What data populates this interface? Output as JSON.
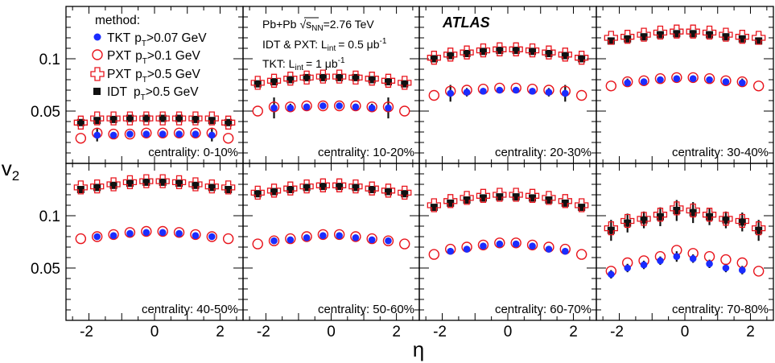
{
  "chart_data": {
    "type": "scatter",
    "ylabel": "v",
    "ylabel_sub": "2",
    "xlabel": "η",
    "xlim": [
      -2.7,
      2.7
    ],
    "ylim": [
      0.0,
      0.15
    ],
    "x_ticks": [
      -2,
      0,
      2
    ],
    "y_ticks": [
      0.05,
      0.1
    ],
    "legend": {
      "title": "method:",
      "entries": [
        {
          "method": "TKT",
          "cut": ">0.07 GeV",
          "marker": "filled-circle",
          "color": "#1a2cff"
        },
        {
          "method": "PXT",
          "cut": ">0.1 GeV",
          "marker": "open-circle",
          "color": "#e8141c"
        },
        {
          "method": "PXT",
          "cut": ">0.5 GeV",
          "marker": "open-cross",
          "color": "#e8141c"
        },
        {
          "method": "IDT",
          "cut": ">0.5 GeV",
          "marker": "filled-square",
          "color": "#111111"
        }
      ]
    },
    "info": {
      "system_prefix": "Pb+Pb",
      "system_value": "=2.76 TeV",
      "lumi1_prefix": "IDT & PXT: L",
      "lumi1_value": "= 0.5 μb",
      "lumi2_prefix": "TKT: L",
      "lumi2_value": "= 1 μb"
    },
    "atlas_label": "ATLAS",
    "panels": [
      {
        "label": "centrality: 0-10%",
        "tkt_x": [
          -1.75,
          -1.25,
          -0.75,
          -0.25,
          0.25,
          0.75,
          1.25,
          1.75
        ],
        "tkt_y": [
          0.027,
          0.027,
          0.028,
          0.028,
          0.028,
          0.028,
          0.028,
          0.027
        ],
        "tkt_err": [
          0.006,
          0.002,
          0.002,
          0.001,
          0.001,
          0.002,
          0.002,
          0.006
        ],
        "pxt01_x": [
          -2.25,
          -1.75,
          -1.25,
          -0.75,
          -0.25,
          0.25,
          0.75,
          1.25,
          1.75,
          2.25
        ],
        "pxt01_y": [
          0.024,
          0.029,
          0.028,
          0.028,
          0.029,
          0.029,
          0.029,
          0.029,
          0.029,
          0.024
        ],
        "pxt05_x": [
          -2.25,
          -1.75,
          -1.25,
          -0.75,
          -0.25,
          0.25,
          0.75,
          1.25,
          1.75,
          2.25
        ],
        "pxt05_y": [
          0.039,
          0.043,
          0.043,
          0.043,
          0.043,
          0.043,
          0.043,
          0.043,
          0.043,
          0.039
        ],
        "idt_x": [
          -2.25,
          -1.75,
          -1.25,
          -0.75,
          -0.25,
          0.25,
          0.75,
          1.25,
          1.75,
          2.25
        ],
        "idt_y": [
          0.039,
          0.041,
          0.042,
          0.043,
          0.043,
          0.043,
          0.043,
          0.042,
          0.041,
          0.039
        ],
        "idt_err": [
          0.002,
          0.002,
          0.002,
          0.001,
          0.001,
          0.001,
          0.001,
          0.002,
          0.002,
          0.002
        ]
      },
      {
        "label": "centrality: 10-20%",
        "tkt_x": [
          -1.75,
          -1.25,
          -0.75,
          -0.25,
          0.25,
          0.75,
          1.25,
          1.75
        ],
        "tkt_y": [
          0.053,
          0.053,
          0.054,
          0.055,
          0.055,
          0.054,
          0.053,
          0.053
        ],
        "tkt_err": [
          0.01,
          0.004,
          0.002,
          0.001,
          0.001,
          0.002,
          0.004,
          0.01
        ],
        "pxt01_x": [
          -2.25,
          -1.75,
          -1.25,
          -0.75,
          -0.25,
          0.25,
          0.75,
          1.25,
          1.75,
          2.25
        ],
        "pxt01_y": [
          0.05,
          0.054,
          0.054,
          0.055,
          0.055,
          0.055,
          0.055,
          0.054,
          0.054,
          0.05
        ],
        "pxt05_x": [
          -2.25,
          -1.75,
          -1.25,
          -0.75,
          -0.25,
          0.25,
          0.75,
          1.25,
          1.75,
          2.25
        ],
        "pxt05_y": [
          0.077,
          0.079,
          0.081,
          0.082,
          0.083,
          0.083,
          0.082,
          0.081,
          0.079,
          0.077
        ],
        "idt_x": [
          -2.25,
          -1.75,
          -1.25,
          -0.75,
          -0.25,
          0.25,
          0.75,
          1.25,
          1.75,
          2.25
        ],
        "idt_y": [
          0.076,
          0.078,
          0.08,
          0.082,
          0.082,
          0.082,
          0.082,
          0.08,
          0.078,
          0.076
        ],
        "idt_err": [
          0.002,
          0.002,
          0.002,
          0.001,
          0.001,
          0.001,
          0.001,
          0.002,
          0.002,
          0.002
        ]
      },
      {
        "label": "centrality: 20-30%",
        "tkt_x": [
          -1.75,
          -1.25,
          -0.75,
          -0.25,
          0.25,
          0.75,
          1.25,
          1.75
        ],
        "tkt_y": [
          0.067,
          0.068,
          0.069,
          0.07,
          0.07,
          0.069,
          0.068,
          0.067
        ],
        "tkt_err": [
          0.008,
          0.004,
          0.002,
          0.001,
          0.001,
          0.002,
          0.004,
          0.008
        ],
        "pxt01_x": [
          -2.25,
          -1.75,
          -1.25,
          -0.75,
          -0.25,
          0.25,
          0.75,
          1.25,
          1.75,
          2.25
        ],
        "pxt01_y": [
          0.065,
          0.069,
          0.07,
          0.071,
          0.072,
          0.072,
          0.071,
          0.07,
          0.069,
          0.065
        ],
        "pxt05_x": [
          -2.25,
          -1.75,
          -1.25,
          -0.75,
          -0.25,
          0.25,
          0.75,
          1.25,
          1.75,
          2.25
        ],
        "pxt05_y": [
          0.101,
          0.104,
          0.106,
          0.108,
          0.109,
          0.109,
          0.108,
          0.106,
          0.104,
          0.101
        ],
        "idt_x": [
          -2.25,
          -1.75,
          -1.25,
          -0.75,
          -0.25,
          0.25,
          0.75,
          1.25,
          1.75,
          2.25
        ],
        "idt_y": [
          0.1,
          0.103,
          0.105,
          0.107,
          0.108,
          0.108,
          0.107,
          0.105,
          0.103,
          0.1
        ],
        "idt_err": [
          0.002,
          0.002,
          0.002,
          0.001,
          0.001,
          0.001,
          0.001,
          0.002,
          0.002,
          0.002
        ]
      },
      {
        "label": "centrality: 30-40%",
        "tkt_x": [
          -1.75,
          -1.25,
          -0.75,
          -0.25,
          0.25,
          0.75,
          1.25,
          1.75
        ],
        "tkt_y": [
          0.077,
          0.078,
          0.08,
          0.081,
          0.081,
          0.08,
          0.078,
          0.077
        ],
        "tkt_err": [
          0.004,
          0.002,
          0.001,
          0.001,
          0.001,
          0.001,
          0.002,
          0.004
        ],
        "pxt01_x": [
          -2.25,
          -1.75,
          -1.25,
          -0.75,
          -0.25,
          0.25,
          0.75,
          1.25,
          1.75,
          2.25
        ],
        "pxt01_y": [
          0.074,
          0.078,
          0.079,
          0.081,
          0.082,
          0.082,
          0.081,
          0.079,
          0.078,
          0.074
        ],
        "pxt05_x": [
          -2.25,
          -1.75,
          -1.25,
          -0.75,
          -0.25,
          0.25,
          0.75,
          1.25,
          1.75,
          2.25
        ],
        "pxt05_y": [
          0.12,
          0.121,
          0.123,
          0.125,
          0.126,
          0.126,
          0.125,
          0.123,
          0.121,
          0.12
        ],
        "idt_x": [
          -2.25,
          -1.75,
          -1.25,
          -0.75,
          -0.25,
          0.25,
          0.75,
          1.25,
          1.75,
          2.25
        ],
        "idt_y": [
          0.117,
          0.119,
          0.121,
          0.123,
          0.124,
          0.124,
          0.123,
          0.121,
          0.119,
          0.117
        ],
        "idt_err": [
          0.002,
          0.002,
          0.002,
          0.001,
          0.001,
          0.001,
          0.001,
          0.002,
          0.002,
          0.002
        ]
      },
      {
        "label": "centrality: 40-50%",
        "tkt_x": [
          -1.75,
          -1.25,
          -0.75,
          -0.25,
          0.25,
          0.75,
          1.25,
          1.75
        ],
        "tkt_y": [
          0.08,
          0.081,
          0.083,
          0.084,
          0.084,
          0.083,
          0.081,
          0.08
        ],
        "tkt_err": [
          0.003,
          0.002,
          0.001,
          0.001,
          0.001,
          0.001,
          0.002,
          0.003
        ],
        "pxt01_x": [
          -2.25,
          -1.75,
          -1.25,
          -0.75,
          -0.25,
          0.25,
          0.75,
          1.25,
          1.75,
          2.25
        ],
        "pxt01_y": [
          0.078,
          0.08,
          0.082,
          0.084,
          0.085,
          0.085,
          0.084,
          0.082,
          0.08,
          0.078
        ],
        "pxt05_x": [
          -2.25,
          -1.75,
          -1.25,
          -0.75,
          -0.25,
          0.25,
          0.75,
          1.25,
          1.75,
          2.25
        ],
        "pxt05_y": [
          0.127,
          0.128,
          0.13,
          0.132,
          0.133,
          0.133,
          0.132,
          0.13,
          0.128,
          0.127
        ],
        "idt_x": [
          -2.25,
          -1.75,
          -1.25,
          -0.75,
          -0.25,
          0.25,
          0.75,
          1.25,
          1.75,
          2.25
        ],
        "idt_y": [
          0.125,
          0.127,
          0.129,
          0.131,
          0.132,
          0.132,
          0.131,
          0.129,
          0.127,
          0.125
        ],
        "idt_err": [
          0.002,
          0.002,
          0.002,
          0.001,
          0.001,
          0.001,
          0.001,
          0.002,
          0.002,
          0.002
        ]
      },
      {
        "label": "centrality: 50-60%",
        "tkt_x": [
          -1.75,
          -1.25,
          -0.75,
          -0.25,
          0.25,
          0.75,
          1.25,
          1.75
        ],
        "tkt_y": [
          0.076,
          0.077,
          0.079,
          0.081,
          0.081,
          0.079,
          0.077,
          0.076
        ],
        "tkt_err": [
          0.003,
          0.002,
          0.001,
          0.001,
          0.001,
          0.001,
          0.002,
          0.003
        ],
        "pxt01_x": [
          -2.25,
          -1.75,
          -1.25,
          -0.75,
          -0.25,
          0.25,
          0.75,
          1.25,
          1.75,
          2.25
        ],
        "pxt01_y": [
          0.073,
          0.076,
          0.078,
          0.08,
          0.082,
          0.082,
          0.08,
          0.078,
          0.076,
          0.073
        ],
        "pxt05_x": [
          -2.25,
          -1.75,
          -1.25,
          -0.75,
          -0.25,
          0.25,
          0.75,
          1.25,
          1.75,
          2.25
        ],
        "pxt05_y": [
          0.122,
          0.124,
          0.126,
          0.128,
          0.129,
          0.129,
          0.128,
          0.126,
          0.124,
          0.122
        ],
        "idt_x": [
          -2.25,
          -1.75,
          -1.25,
          -0.75,
          -0.25,
          0.25,
          0.75,
          1.25,
          1.75,
          2.25
        ],
        "idt_y": [
          0.121,
          0.123,
          0.125,
          0.127,
          0.128,
          0.128,
          0.127,
          0.125,
          0.123,
          0.121
        ],
        "idt_err": [
          0.002,
          0.002,
          0.002,
          0.002,
          0.002,
          0.002,
          0.002,
          0.002,
          0.002,
          0.002
        ]
      },
      {
        "label": "centrality: 60-70%",
        "tkt_x": [
          -1.75,
          -1.25,
          -0.75,
          -0.25,
          0.25,
          0.75,
          1.25,
          1.75
        ],
        "tkt_y": [
          0.066,
          0.068,
          0.071,
          0.073,
          0.073,
          0.071,
          0.068,
          0.066
        ],
        "tkt_err": [
          0.003,
          0.002,
          0.002,
          0.002,
          0.002,
          0.002,
          0.002,
          0.003
        ],
        "pxt01_x": [
          -2.25,
          -1.75,
          -1.25,
          -0.75,
          -0.25,
          0.25,
          0.75,
          1.25,
          1.75,
          2.25
        ],
        "pxt01_y": [
          0.063,
          0.068,
          0.07,
          0.072,
          0.074,
          0.074,
          0.072,
          0.07,
          0.068,
          0.063
        ],
        "pxt05_x": [
          -2.25,
          -1.75,
          -1.25,
          -0.75,
          -0.25,
          0.25,
          0.75,
          1.25,
          1.75,
          2.25
        ],
        "pxt05_y": [
          0.11,
          0.114,
          0.117,
          0.119,
          0.12,
          0.12,
          0.119,
          0.117,
          0.114,
          0.11
        ],
        "idt_x": [
          -2.25,
          -1.75,
          -1.25,
          -0.75,
          -0.25,
          0.25,
          0.75,
          1.25,
          1.75,
          2.25
        ],
        "idt_y": [
          0.108,
          0.112,
          0.115,
          0.117,
          0.118,
          0.118,
          0.117,
          0.115,
          0.112,
          0.108
        ],
        "idt_err": [
          0.003,
          0.003,
          0.002,
          0.002,
          0.002,
          0.002,
          0.002,
          0.002,
          0.003,
          0.003
        ]
      },
      {
        "label": "centrality: 70-80%",
        "tkt_x": [
          -2.25,
          -1.75,
          -1.25,
          -0.75,
          -0.25,
          0.25,
          0.75,
          1.25,
          1.75
        ],
        "tkt_y": [
          0.044,
          0.05,
          0.053,
          0.057,
          0.061,
          0.059,
          0.054,
          0.05,
          0.048
        ],
        "tkt_err": [
          0.004,
          0.004,
          0.004,
          0.004,
          0.005,
          0.004,
          0.004,
          0.004,
          0.004
        ],
        "pxt01_x": [
          -2.25,
          -1.75,
          -1.25,
          -0.75,
          -0.25,
          0.25,
          0.75,
          1.25,
          1.75,
          2.25
        ],
        "pxt01_y": [
          0.047,
          0.055,
          0.057,
          0.061,
          0.067,
          0.064,
          0.061,
          0.058,
          0.055,
          0.047
        ],
        "pxt05_x": [
          -2.25,
          -1.75,
          -1.25,
          -0.75,
          -0.25,
          0.25,
          0.75,
          1.25,
          1.75,
          2.25
        ],
        "pxt05_y": [
          0.088,
          0.095,
          0.097,
          0.101,
          0.107,
          0.105,
          0.101,
          0.097,
          0.095,
          0.088
        ],
        "idt_x": [
          -2.25,
          -1.75,
          -1.25,
          -0.75,
          -0.25,
          0.25,
          0.75,
          1.25,
          1.75,
          2.25
        ],
        "idt_y": [
          0.086,
          0.093,
          0.096,
          0.099,
          0.105,
          0.103,
          0.099,
          0.096,
          0.094,
          0.086
        ],
        "idt_err": [
          0.01,
          0.009,
          0.008,
          0.009,
          0.01,
          0.01,
          0.008,
          0.008,
          0.009,
          0.01
        ]
      }
    ]
  }
}
